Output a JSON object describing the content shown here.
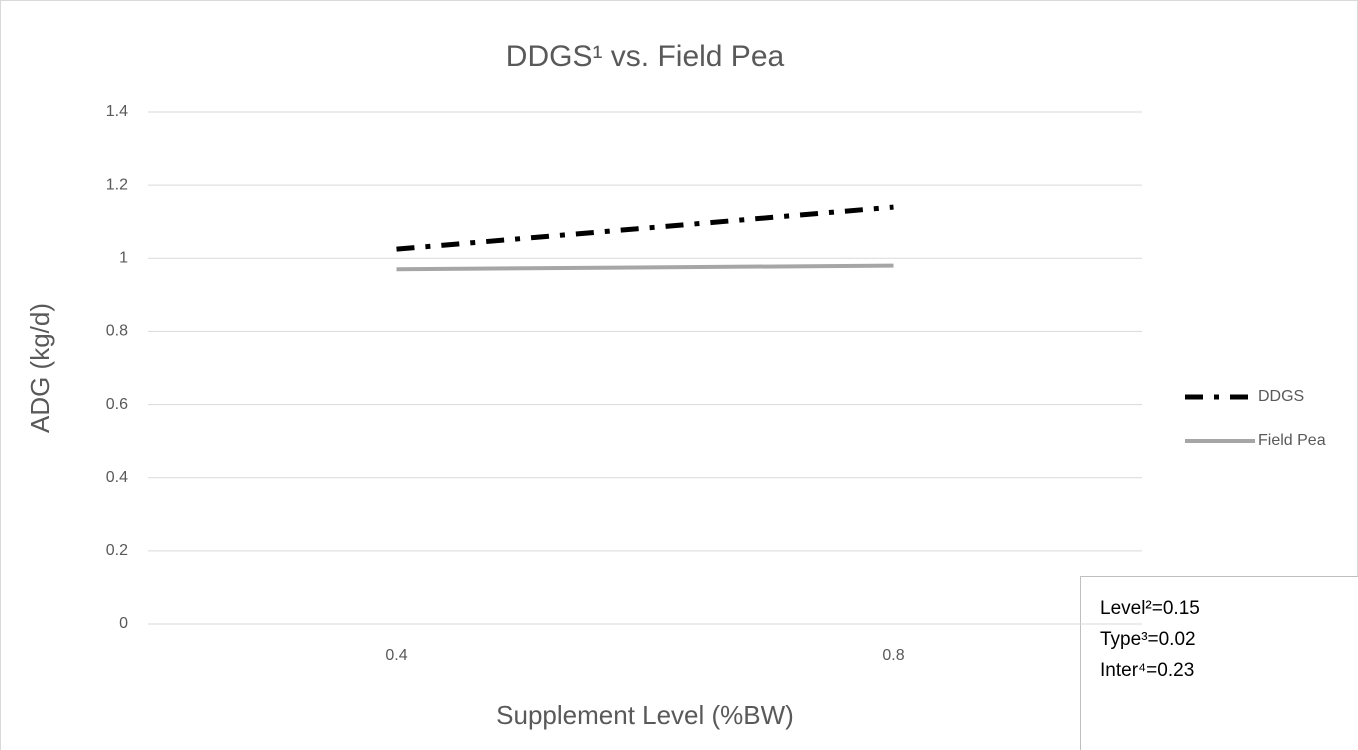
{
  "chart_data": {
    "type": "line",
    "title": "DDGS¹ vs. Field Pea",
    "x_label": "Supplement Level (%BW)",
    "y_label": "ADG (kg/d)",
    "categories": [
      "0.4",
      "0.8"
    ],
    "series": [
      {
        "name": "DDGS",
        "color": "#000000",
        "line_style": "dash-dot",
        "values": [
          1.025,
          1.14
        ]
      },
      {
        "name": "Field Pea",
        "color": "#a6a6a6",
        "line_style": "solid",
        "values": [
          0.97,
          0.98
        ]
      }
    ],
    "ylim": [
      0,
      1.4
    ],
    "yticks": [
      0,
      0.2,
      0.4,
      0.6,
      0.8,
      1,
      1.2,
      1.4
    ],
    "grid": true,
    "legend": "right",
    "annotations": [
      "Level²=0.15",
      "Type³=0.02",
      "Inter⁴=0.23"
    ]
  }
}
